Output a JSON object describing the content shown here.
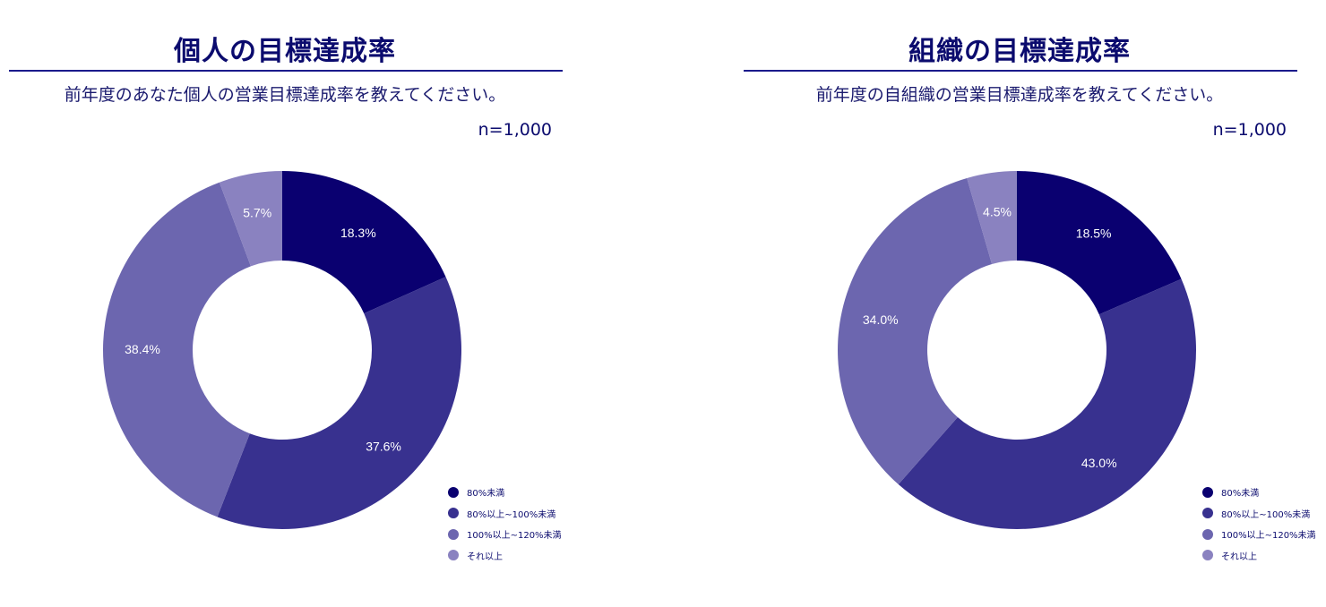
{
  "colors": [
    "#0a0070",
    "#38318f",
    "#6c66af",
    "#8a82c0"
  ],
  "chart_data": [
    {
      "type": "pie",
      "title": "個人の目標達成率",
      "subtitle": "前年度のあなた個人の営業目標達成率を教えてください。",
      "sample": "n=1,000",
      "categories": [
        "80%未満",
        "80%以上~100%未満",
        "100%以上~120%未満",
        "それ以上"
      ],
      "values": [
        18.3,
        37.6,
        38.4,
        5.7
      ],
      "value_labels": [
        "18.3%",
        "37.6%",
        "38.4%",
        "5.7%"
      ],
      "legend_position": "bottom-right"
    },
    {
      "type": "pie",
      "title": "組織の目標達成率",
      "subtitle": "前年度の自組織の営業目標達成率を教えてください。",
      "sample": "n=1,000",
      "categories": [
        "80%未満",
        "80%以上~100%未満",
        "100%以上~120%未満",
        "それ以上"
      ],
      "values": [
        18.5,
        43.0,
        34.0,
        4.5
      ],
      "value_labels": [
        "18.5%",
        "43.0%",
        "34.0%",
        "4.5%"
      ],
      "legend_position": "bottom-right"
    }
  ]
}
